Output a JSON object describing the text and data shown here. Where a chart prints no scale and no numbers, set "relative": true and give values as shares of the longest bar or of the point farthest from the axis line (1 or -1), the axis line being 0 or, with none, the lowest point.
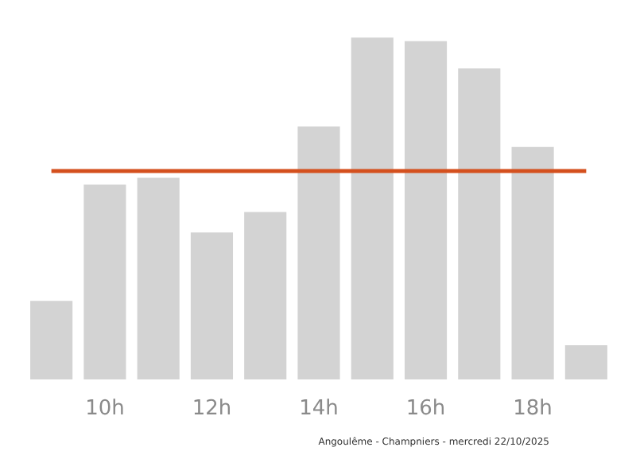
{
  "chart_data": {
    "type": "bar",
    "relative": true,
    "categories": [
      null,
      "10h",
      null,
      "12h",
      null,
      "14h",
      null,
      "16h",
      null,
      "18h",
      null
    ],
    "values": [
      0.23,
      0.57,
      0.59,
      0.43,
      0.49,
      0.74,
      1,
      0.99,
      0.91,
      0.68,
      0.1
    ],
    "color": "#d3d3d3",
    "ref_lines": [
      {
        "axis": "y",
        "value": 0.61,
        "color": "#d4501e"
      }
    ],
    "annotations": [
      "Angoulême - Champniers - mercredi 22/10/2025"
    ],
    "grid": false
  }
}
